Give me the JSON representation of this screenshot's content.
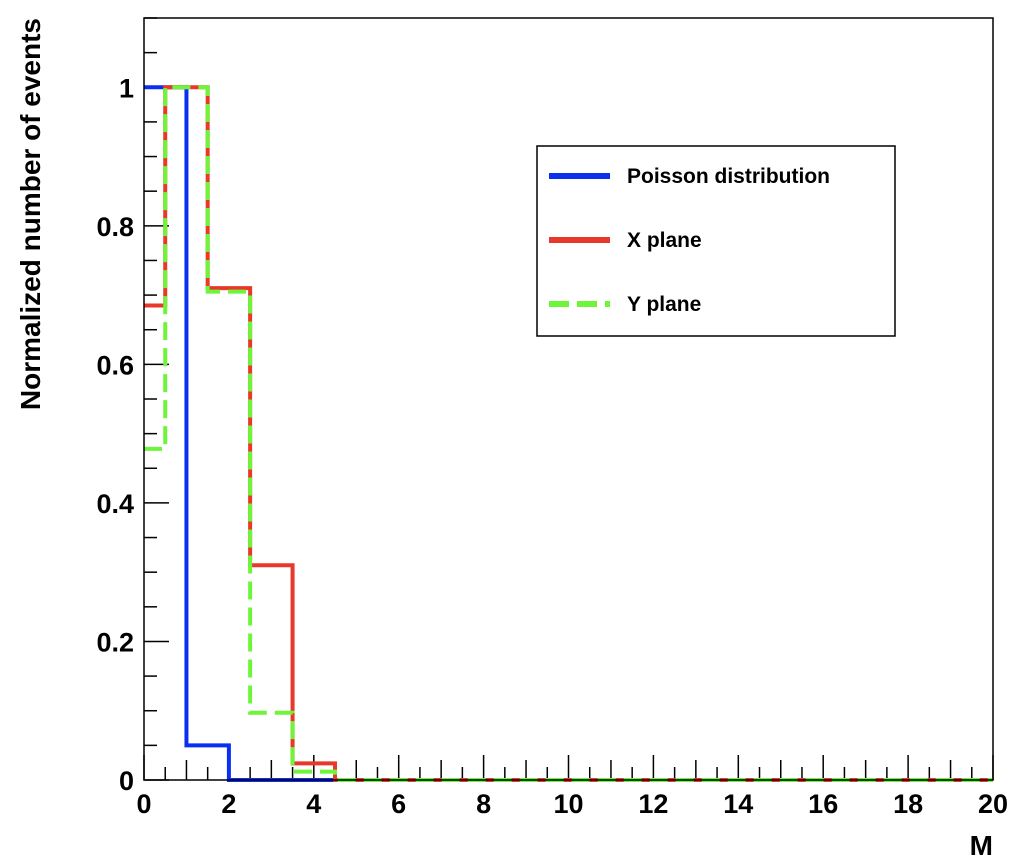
{
  "chart_data": {
    "type": "histogram-step",
    "xlabel": "M",
    "ylabel": "Normalized number of events",
    "xlim": [
      0,
      20
    ],
    "ylim": [
      0,
      1.1
    ],
    "x_ticks": [
      0,
      2,
      4,
      6,
      8,
      10,
      12,
      14,
      16,
      18,
      20
    ],
    "y_ticks": [
      0,
      0.2,
      0.4,
      0.6,
      0.8,
      1
    ],
    "x_tick_labels": [
      "0",
      "2",
      "4",
      "6",
      "8",
      "10",
      "12",
      "14",
      "16",
      "18",
      "20"
    ],
    "y_tick_labels": [
      "0",
      "0.2",
      "0.4",
      "0.6",
      "0.8",
      "1"
    ],
    "grid": false,
    "legend_position": "top-right",
    "series": [
      {
        "name": "Poisson distribution",
        "color": "#0a2ff0",
        "dash": "solid",
        "edges": [
          0,
          1,
          2,
          3,
          4,
          5,
          6,
          7,
          8,
          9,
          10,
          11,
          12,
          13,
          14,
          15,
          16,
          17,
          18,
          19,
          20
        ],
        "values": [
          1.0,
          0.05,
          0.0,
          0.0,
          0.0,
          0.0,
          0.0,
          0.0,
          0.0,
          0.0,
          0.0,
          0.0,
          0.0,
          0.0,
          0.0,
          0.0,
          0.0,
          0.0,
          0.0,
          0.0
        ]
      },
      {
        "name": "X plane",
        "color": "#e8382a",
        "dash": "solid",
        "edges": [
          -0.5,
          0.5,
          1.5,
          2.5,
          3.5,
          4.5,
          5.5,
          6.5,
          7.5,
          8.5,
          9.5,
          10.5,
          11.5,
          12.5,
          13.5,
          14.5,
          15.5,
          16.5,
          17.5,
          18.5,
          19.5,
          20
        ],
        "values": [
          0.685,
          1.0,
          0.71,
          0.31,
          0.024,
          0.0,
          0.0,
          0.0,
          0.0,
          0.0,
          0.0,
          0.0,
          0.0,
          0.0,
          0.0,
          0.0,
          0.0,
          0.0,
          0.0,
          0.0,
          0.0
        ]
      },
      {
        "name": "Y plane",
        "color": "#6ef53a",
        "dash": "dashed",
        "edges": [
          -0.5,
          0.5,
          1.5,
          2.5,
          3.5,
          4.5,
          5.5,
          6.5,
          7.5,
          8.5,
          9.5,
          10.5,
          11.5,
          12.5,
          13.5,
          14.5,
          15.5,
          16.5,
          17.5,
          18.5,
          19.5,
          20
        ],
        "values": [
          0.478,
          1.0,
          0.705,
          0.097,
          0.012,
          0.0,
          0.0,
          0.0,
          0.0,
          0.0,
          0.0,
          0.0,
          0.0,
          0.0,
          0.0,
          0.0,
          0.0,
          0.0,
          0.0,
          0.0,
          0.0
        ]
      }
    ]
  }
}
